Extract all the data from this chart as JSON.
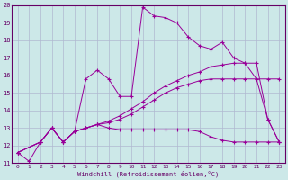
{
  "xlabel": "Windchill (Refroidissement éolien,°C)",
  "background_color": "#cce8e8",
  "grid_color": "#b0b8d0",
  "line_color": "#990099",
  "xlim": [
    -0.5,
    23.5
  ],
  "ylim": [
    11,
    20
  ],
  "line1_x": [
    0,
    1,
    2,
    3,
    4,
    5,
    6,
    7,
    8,
    9,
    10,
    11,
    12,
    13,
    14,
    15,
    16,
    17,
    18,
    19,
    20,
    21,
    22,
    23
  ],
  "line1_y": [
    11.6,
    11.1,
    12.2,
    13.0,
    12.2,
    12.8,
    15.8,
    16.3,
    15.8,
    14.8,
    14.8,
    19.9,
    19.4,
    19.3,
    19.0,
    18.2,
    17.7,
    17.5,
    17.9,
    17.0,
    16.7,
    15.8,
    13.5,
    12.2
  ],
  "line2_x": [
    0,
    2,
    3,
    4,
    5,
    6,
    7,
    8,
    9,
    10,
    11,
    12,
    13,
    14,
    15,
    16,
    17,
    18,
    19,
    20,
    21,
    22,
    23
  ],
  "line2_y": [
    11.6,
    12.2,
    13.0,
    12.2,
    12.8,
    13.0,
    13.2,
    13.0,
    12.9,
    12.9,
    12.9,
    12.9,
    12.9,
    12.9,
    12.9,
    12.8,
    12.5,
    12.3,
    12.2,
    12.2,
    12.2,
    12.2,
    12.2
  ],
  "line3_x": [
    0,
    2,
    3,
    4,
    5,
    6,
    7,
    8,
    9,
    10,
    11,
    12,
    13,
    14,
    15,
    16,
    17,
    18,
    19,
    20,
    21,
    22,
    23
  ],
  "line3_y": [
    11.6,
    12.2,
    13.0,
    12.2,
    12.8,
    13.0,
    13.2,
    13.4,
    13.7,
    14.1,
    14.5,
    15.0,
    15.4,
    15.7,
    16.0,
    16.2,
    16.5,
    16.6,
    16.7,
    16.7,
    16.7,
    13.5,
    12.2
  ],
  "line4_x": [
    0,
    2,
    3,
    4,
    5,
    6,
    7,
    8,
    9,
    10,
    11,
    12,
    13,
    14,
    15,
    16,
    17,
    18,
    19,
    20,
    21,
    22,
    23
  ],
  "line4_y": [
    11.6,
    12.2,
    13.0,
    12.2,
    12.8,
    13.0,
    13.2,
    13.3,
    13.5,
    13.8,
    14.2,
    14.6,
    15.0,
    15.3,
    15.5,
    15.7,
    15.8,
    15.8,
    15.8,
    15.8,
    15.8,
    15.8,
    15.8
  ],
  "xticks": [
    0,
    1,
    2,
    3,
    4,
    5,
    6,
    7,
    8,
    9,
    10,
    11,
    12,
    13,
    14,
    15,
    16,
    17,
    18,
    19,
    20,
    21,
    22,
    23
  ],
  "yticks": [
    11,
    12,
    13,
    14,
    15,
    16,
    17,
    18,
    19,
    20
  ]
}
